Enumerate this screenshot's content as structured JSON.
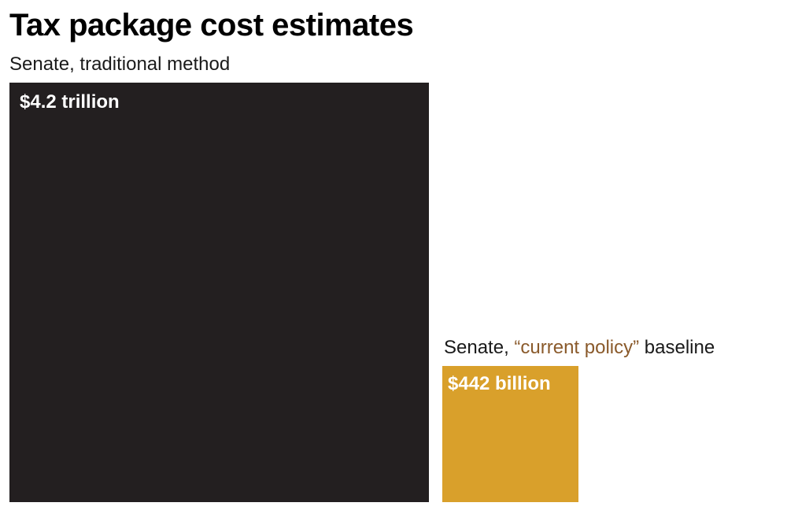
{
  "chart_data": {
    "type": "bar",
    "title": "Tax package cost estimates",
    "items": [
      {
        "label": "Senate, traditional method",
        "value_label": "$4.2 trillion",
        "value_billions": 4200,
        "color": "#231f20"
      },
      {
        "label_before": "Senate, ",
        "label_highlight": "“current policy”",
        "label_after": " baseline",
        "value_label": "$442 billion",
        "value_billions": 442,
        "color": "#d9a02b"
      }
    ],
    "highlight_color": "#8a5a2b",
    "encoding": "area-proportional squares"
  }
}
